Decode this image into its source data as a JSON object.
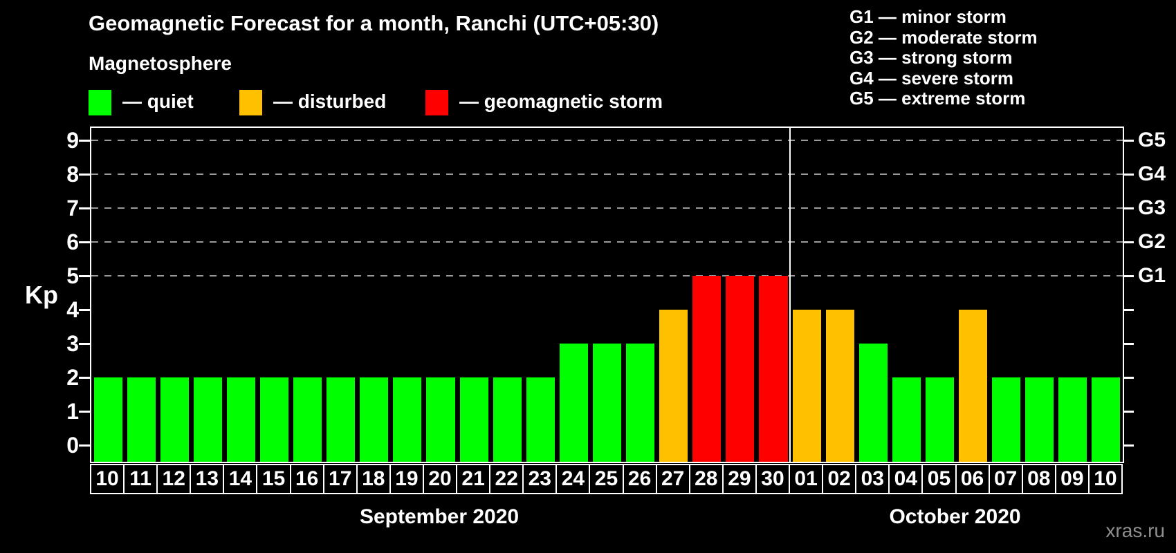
{
  "title": "Geomagnetic Forecast for a month, Ranchi (UTC+05:30)",
  "subtitle": "Magnetosphere",
  "legend": {
    "items": [
      {
        "key": "quiet",
        "label": "— quiet",
        "color": "#00ff00",
        "x": 128
      },
      {
        "key": "disturbed",
        "label": "— disturbed",
        "color": "#ffc000",
        "x": 346
      },
      {
        "key": "storm",
        "label": "— geomagnetic storm",
        "color": "#ff0000",
        "x": 615
      }
    ]
  },
  "g_legend": [
    "G1 — minor storm",
    "G2 — moderate storm",
    "G3 — strong storm",
    "G4 — severe storm",
    "G5 — extreme storm"
  ],
  "watermark": "xras.ru",
  "chart_data": {
    "type": "bar",
    "title": "Geomagnetic Forecast for a month, Ranchi (UTC+05:30)",
    "ylabel": "Kp",
    "ylim": [
      -0.5,
      9.4
    ],
    "yticks": [
      0,
      1,
      2,
      3,
      4,
      5,
      6,
      7,
      8,
      9
    ],
    "grid_levels": [
      5,
      6,
      7,
      8,
      9
    ],
    "right_axis": [
      {
        "kp": 5,
        "label": "G1"
      },
      {
        "kp": 6,
        "label": "G2"
      },
      {
        "kp": 7,
        "label": "G3"
      },
      {
        "kp": 8,
        "label": "G4"
      },
      {
        "kp": 9,
        "label": "G5"
      }
    ],
    "status_colors": {
      "quiet": "#00ff00",
      "disturbed": "#ffc000",
      "storm": "#ff0000"
    },
    "legend_position": "top-left",
    "grid": "dashed horizontal at G levels only",
    "months": [
      {
        "label": "September 2020",
        "days": [
          {
            "day": "10",
            "kp": 2,
            "status": "quiet"
          },
          {
            "day": "11",
            "kp": 2,
            "status": "quiet"
          },
          {
            "day": "12",
            "kp": 2,
            "status": "quiet"
          },
          {
            "day": "13",
            "kp": 2,
            "status": "quiet"
          },
          {
            "day": "14",
            "kp": 2,
            "status": "quiet"
          },
          {
            "day": "15",
            "kp": 2,
            "status": "quiet"
          },
          {
            "day": "16",
            "kp": 2,
            "status": "quiet"
          },
          {
            "day": "17",
            "kp": 2,
            "status": "quiet"
          },
          {
            "day": "18",
            "kp": 2,
            "status": "quiet"
          },
          {
            "day": "19",
            "kp": 2,
            "status": "quiet"
          },
          {
            "day": "20",
            "kp": 2,
            "status": "quiet"
          },
          {
            "day": "21",
            "kp": 2,
            "status": "quiet"
          },
          {
            "day": "22",
            "kp": 2,
            "status": "quiet"
          },
          {
            "day": "23",
            "kp": 2,
            "status": "quiet"
          },
          {
            "day": "24",
            "kp": 3,
            "status": "quiet"
          },
          {
            "day": "25",
            "kp": 3,
            "status": "quiet"
          },
          {
            "day": "26",
            "kp": 3,
            "status": "quiet"
          },
          {
            "day": "27",
            "kp": 4,
            "status": "disturbed"
          },
          {
            "day": "28",
            "kp": 5,
            "status": "storm"
          },
          {
            "day": "29",
            "kp": 5,
            "status": "storm"
          },
          {
            "day": "30",
            "kp": 5,
            "status": "storm"
          }
        ]
      },
      {
        "label": "October 2020",
        "days": [
          {
            "day": "01",
            "kp": 4,
            "status": "disturbed"
          },
          {
            "day": "02",
            "kp": 4,
            "status": "disturbed"
          },
          {
            "day": "03",
            "kp": 3,
            "status": "quiet"
          },
          {
            "day": "04",
            "kp": 2,
            "status": "quiet"
          },
          {
            "day": "05",
            "kp": 2,
            "status": "quiet"
          },
          {
            "day": "06",
            "kp": 4,
            "status": "disturbed"
          },
          {
            "day": "07",
            "kp": 2,
            "status": "quiet"
          },
          {
            "day": "08",
            "kp": 2,
            "status": "quiet"
          },
          {
            "day": "09",
            "kp": 2,
            "status": "quiet"
          },
          {
            "day": "10",
            "kp": 2,
            "status": "quiet"
          }
        ]
      }
    ]
  }
}
